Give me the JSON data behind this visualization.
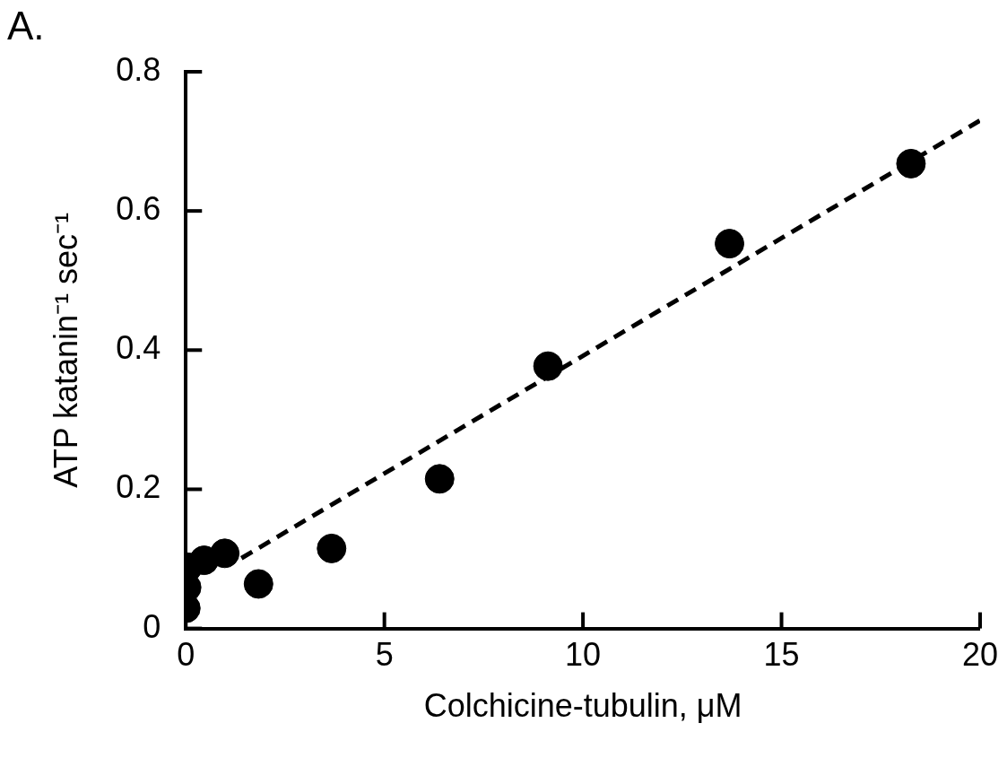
{
  "chart_data": {
    "type": "scatter",
    "xlabel": "Colchicine-tubulin, μM",
    "ylabel": "ATP katanin⁻¹ sec⁻¹",
    "annotations": [
      "A."
    ],
    "xlim": [
      0,
      20
    ],
    "xticks": [
      0,
      5,
      10,
      15,
      20
    ],
    "ylim": [
      0,
      0.8
    ],
    "yticks": [
      0,
      0.2,
      0.4,
      0.6,
      0.8
    ],
    "grid": false,
    "legend": false,
    "marker": "circle",
    "series": [
      {
        "type": "scatter",
        "color": "#000000",
        "x": [
          0.0,
          0.02,
          0.05,
          0.46,
          0.98,
          1.83,
          3.67,
          6.39,
          9.12,
          13.69,
          18.26
        ],
        "values": [
          0.029,
          0.059,
          0.088,
          0.098,
          0.108,
          0.064,
          0.115,
          0.215,
          0.377,
          0.553,
          0.668
        ]
      },
      {
        "type": "line",
        "color": "#000000",
        "marker": "none",
        "line_style": "dashed",
        "x": [
          1.4,
          20
        ],
        "values": [
          0.101,
          0.73
        ]
      }
    ]
  }
}
